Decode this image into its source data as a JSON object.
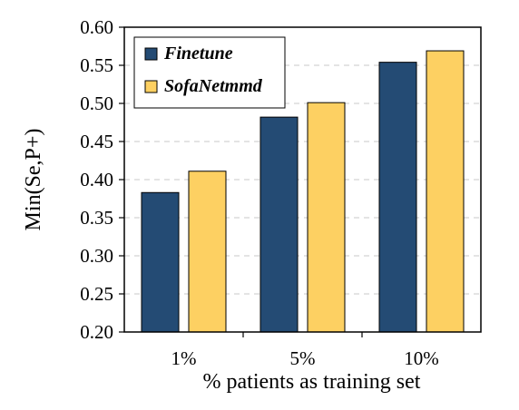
{
  "chart_data": {
    "type": "bar",
    "categories": [
      "1%",
      "5%",
      "10%"
    ],
    "series": [
      {
        "name": "Finetune",
        "color": "#244b74",
        "values": [
          0.383,
          0.482,
          0.554
        ]
      },
      {
        "name": "SofaNetmmd",
        "color": "#fdd062",
        "values": [
          0.411,
          0.501,
          0.569
        ]
      }
    ],
    "xlabel": "% patients as training set",
    "ylabel": "Min(Se,P+)",
    "ylim": [
      0.2,
      0.6
    ],
    "yticks": [
      "0.20",
      "0.25",
      "0.30",
      "0.35",
      "0.40",
      "0.45",
      "0.50",
      "0.55",
      "0.60"
    ],
    "grid": "horizontal-dashed",
    "legend_position": "top-left"
  }
}
